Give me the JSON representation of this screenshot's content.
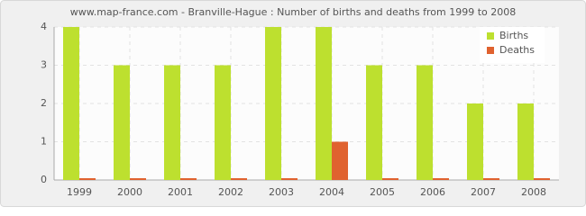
{
  "chart_data": {
    "type": "bar",
    "title": "www.map-france.com - Branville-Hague : Number of births and deaths from 1999 to 2008",
    "categories": [
      "1999",
      "2000",
      "2001",
      "2002",
      "2003",
      "2004",
      "2005",
      "2006",
      "2007",
      "2008"
    ],
    "series": [
      {
        "name": "Births",
        "color": "#bde02f",
        "values": [
          4,
          3,
          3,
          3,
          4,
          4,
          3,
          3,
          2,
          2
        ]
      },
      {
        "name": "Deaths",
        "color": "#e0622f",
        "values": [
          0,
          0,
          0,
          0,
          0,
          1,
          0,
          0,
          0,
          0
        ]
      }
    ],
    "ylim": [
      0,
      4
    ],
    "yticks": [
      0,
      1,
      2,
      3,
      4
    ],
    "grid": true,
    "legend": "top-right"
  }
}
